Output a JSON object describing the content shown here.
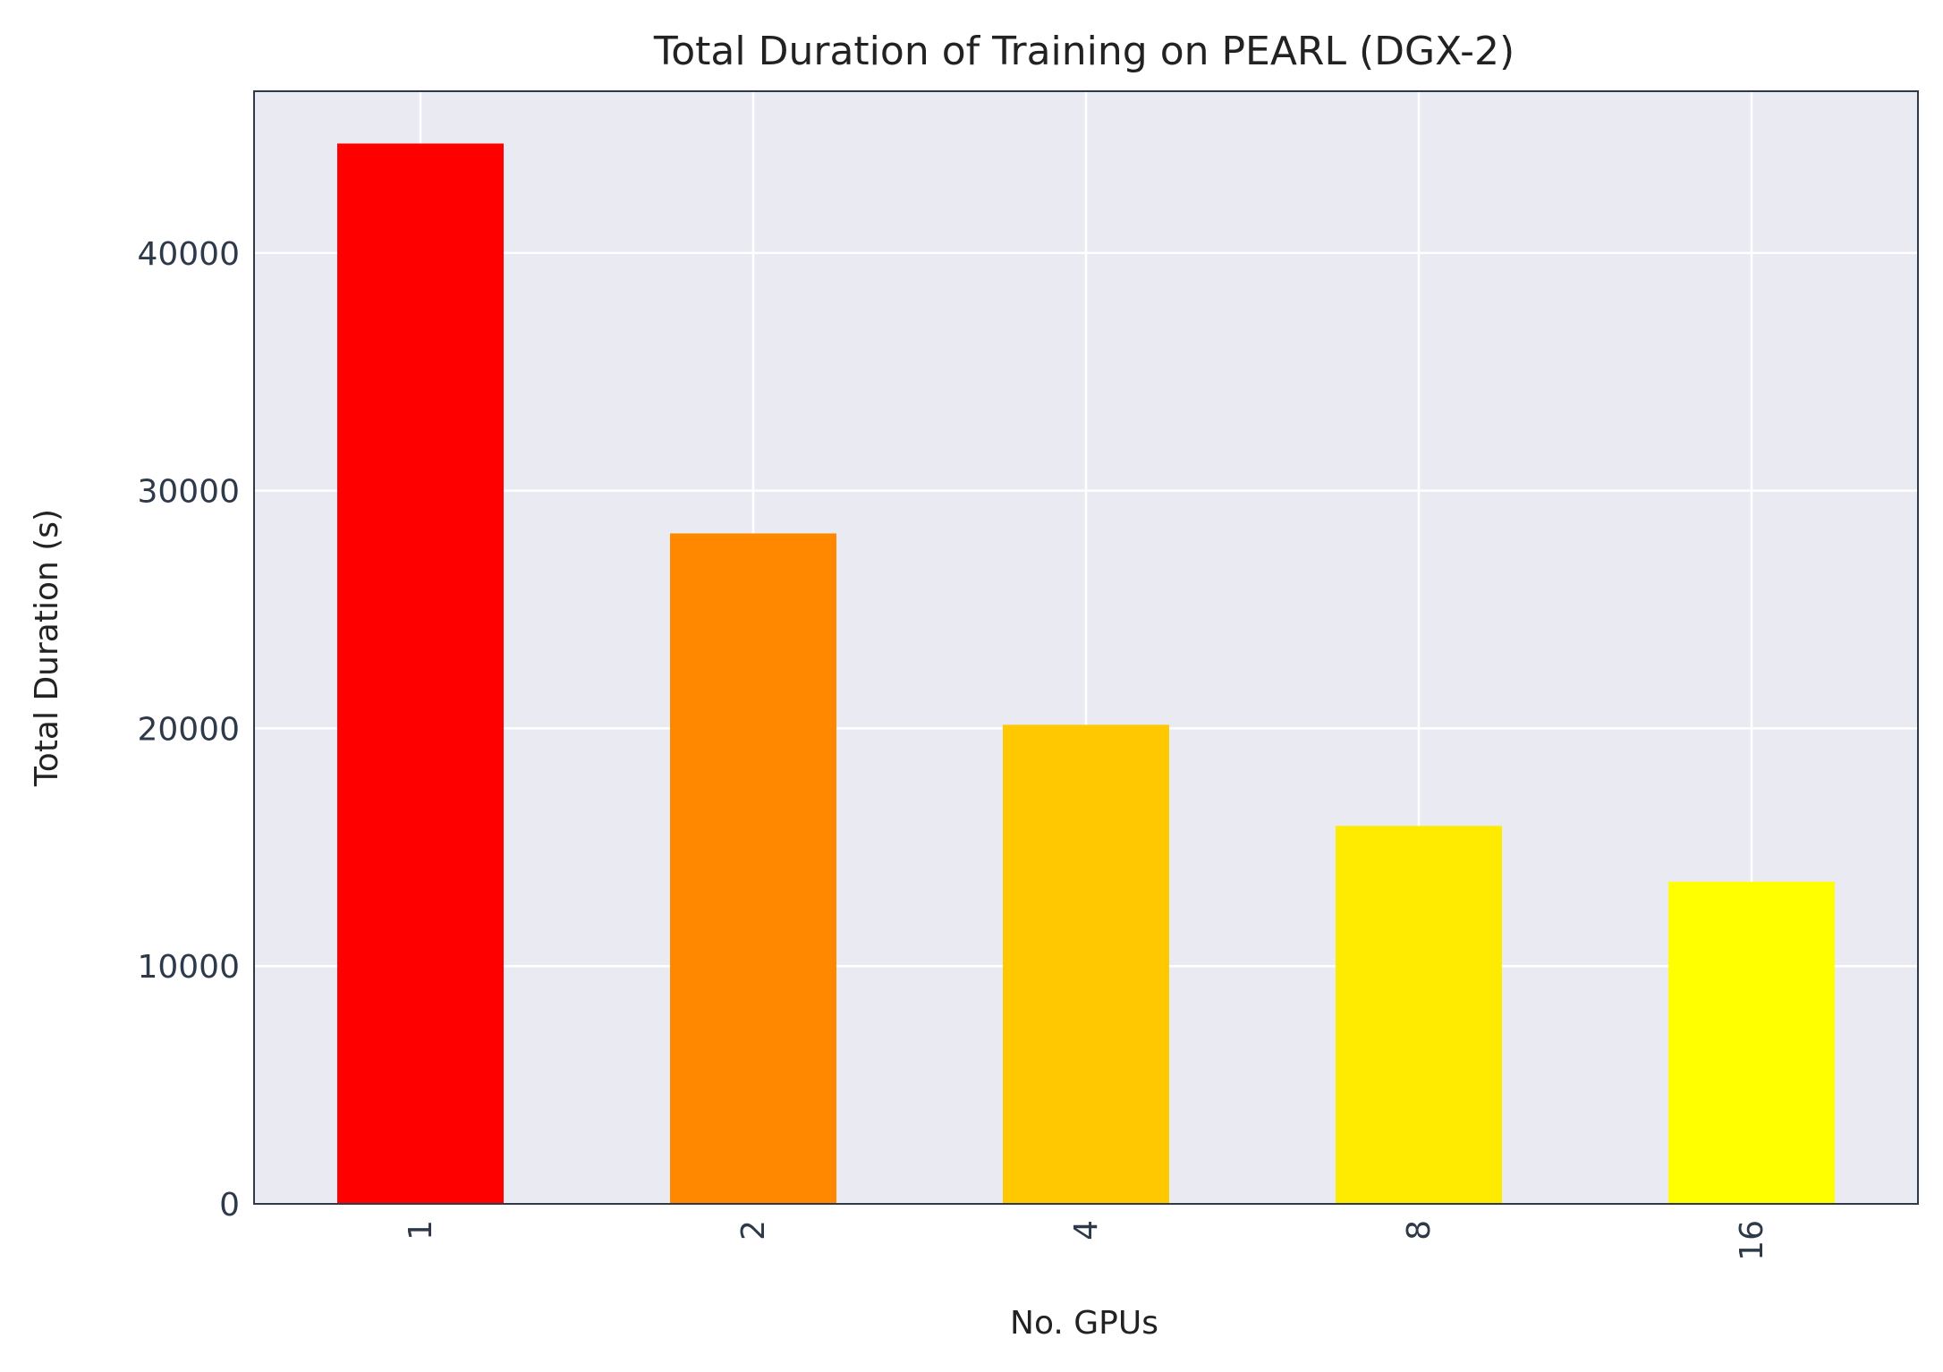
{
  "chart_data": {
    "type": "bar",
    "title": "Total Duration of Training on PEARL (DGX-2)",
    "xlabel": "No. GPUs",
    "ylabel": "Total Duration (s)",
    "categories": [
      "1",
      "2",
      "4",
      "8",
      "16"
    ],
    "values": [
      44600,
      28200,
      20150,
      15900,
      13550
    ],
    "colors": [
      "#ff0000",
      "#ff8800",
      "#ffc800",
      "#ffeb00",
      "#ffff00"
    ],
    "ylim": [
      0,
      46800
    ],
    "yticks": [
      0,
      10000,
      20000,
      30000,
      40000
    ],
    "ytick_labels": [
      "0",
      "10000",
      "20000",
      "30000",
      "40000"
    ],
    "grid": true,
    "legend": "none",
    "plot_background": "#eaeaf2",
    "grid_color": "#ffffff",
    "frame_color": "#2e3a4a"
  }
}
